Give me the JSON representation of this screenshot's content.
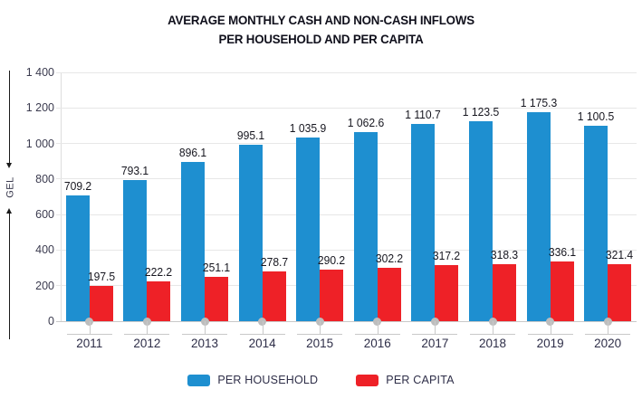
{
  "title": {
    "line1": "AVERAGE MONTHLY CASH AND NON-CASH INFLOWS",
    "line2": "PER HOUSEHOLD AND PER CAPITA"
  },
  "y_axis": {
    "unit": "GEL",
    "tick_labels": [
      "1 400",
      "1 200",
      "1 000",
      "800",
      "600",
      "400",
      "200",
      "0"
    ],
    "tick_values": [
      1400,
      1200,
      1000,
      800,
      600,
      400,
      200,
      0
    ]
  },
  "chart_data": {
    "type": "bar",
    "title": "AVERAGE MONTHLY CASH AND NON-CASH INFLOWS PER HOUSEHOLD AND PER CAPITA",
    "ylabel": "GEL",
    "ylim": [
      0,
      1400
    ],
    "grid": true,
    "legend_position": "bottom",
    "categories": [
      "2011",
      "2012",
      "2013",
      "2014",
      "2015",
      "2016",
      "2017",
      "2018",
      "2019",
      "2020"
    ],
    "series": [
      {
        "name": "PER HOUSEHOLD",
        "color": "#1e8fd0",
        "values": [
          709.2,
          793.1,
          896.1,
          995.1,
          1035.9,
          1062.6,
          1110.7,
          1123.5,
          1175.3,
          1100.5
        ],
        "labels": [
          "709.2",
          "793.1",
          "896.1",
          "995.1",
          "1 035.9",
          "1 062.6",
          "1 110.7",
          "1 123.5",
          "1 175.3",
          "1 100.5"
        ]
      },
      {
        "name": "PER CAPITA",
        "color": "#ee2127",
        "values": [
          197.5,
          222.2,
          251.1,
          278.7,
          290.2,
          302.2,
          317.2,
          318.3,
          336.1,
          321.4
        ],
        "labels": [
          "197.5",
          "222.2",
          "251.1",
          "278.7",
          "290.2",
          "302.2",
          "317.2",
          "318.3",
          "336.1",
          "321.4"
        ]
      }
    ]
  },
  "legend": {
    "items": [
      {
        "label": "PER HOUSEHOLD",
        "color": "#1e8fd0"
      },
      {
        "label": "PER CAPITA",
        "color": "#ee2127"
      }
    ]
  }
}
